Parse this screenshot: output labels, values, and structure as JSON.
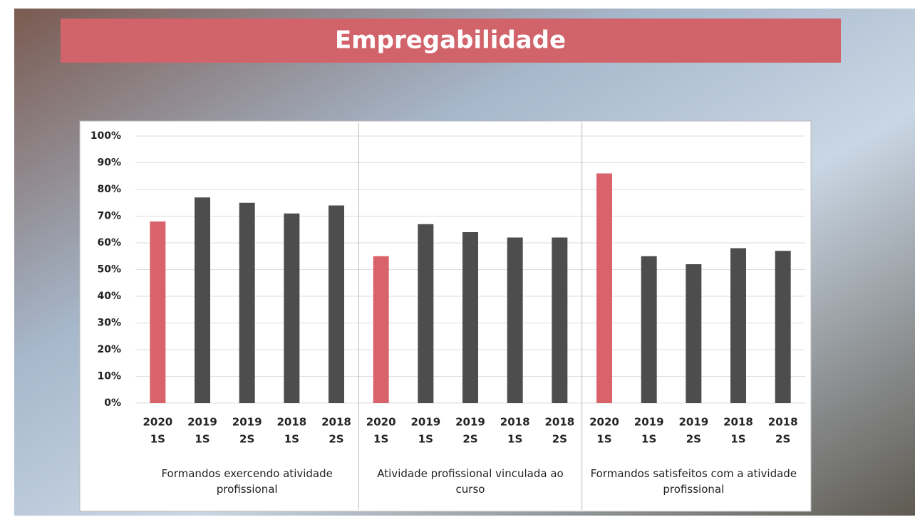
{
  "chart_data": {
    "type": "bar",
    "title": "Empregabilidade",
    "ylim": [
      0,
      100
    ],
    "yticks": [
      {
        "value": 0,
        "label": "0%"
      },
      {
        "value": 10,
        "label": "10%"
      },
      {
        "value": 20,
        "label": "20%"
      },
      {
        "value": 30,
        "label": "30%"
      },
      {
        "value": 40,
        "label": "40%"
      },
      {
        "value": 50,
        "label": "50%"
      },
      {
        "value": 60,
        "label": "60%"
      },
      {
        "value": 70,
        "label": "70%"
      },
      {
        "value": 80,
        "label": "80%"
      },
      {
        "value": 90,
        "label": "90%"
      },
      {
        "value": 100,
        "label": "100%"
      }
    ],
    "grid": true,
    "colors": [
      "#d9636b",
      "#4d4d4d",
      "#4d4d4d",
      "#4d4d4d",
      "#4d4d4d"
    ],
    "groups": [
      {
        "name": "Formandos exercendo atividade profissional",
        "categories": [
          [
            "2020",
            "1S"
          ],
          [
            "2019",
            "1S"
          ],
          [
            "2019",
            "2S"
          ],
          [
            "2018",
            "1S"
          ],
          [
            "2018",
            "2S"
          ]
        ],
        "values": [
          68,
          77,
          75,
          71,
          74
        ]
      },
      {
        "name": "Atividade profissional vinculada ao curso",
        "categories": [
          [
            "2020",
            "1S"
          ],
          [
            "2019",
            "1S"
          ],
          [
            "2019",
            "2S"
          ],
          [
            "2018",
            "1S"
          ],
          [
            "2018",
            "2S"
          ]
        ],
        "values": [
          55,
          67,
          64,
          62,
          62
        ]
      },
      {
        "name": "Formandos satisfeitos com a atividade profissional",
        "categories": [
          [
            "2020",
            "1S"
          ],
          [
            "2019",
            "1S"
          ],
          [
            "2019",
            "2S"
          ],
          [
            "2018",
            "1S"
          ],
          [
            "2018",
            "2S"
          ]
        ],
        "values": [
          86,
          55,
          52,
          58,
          57
        ]
      }
    ]
  }
}
